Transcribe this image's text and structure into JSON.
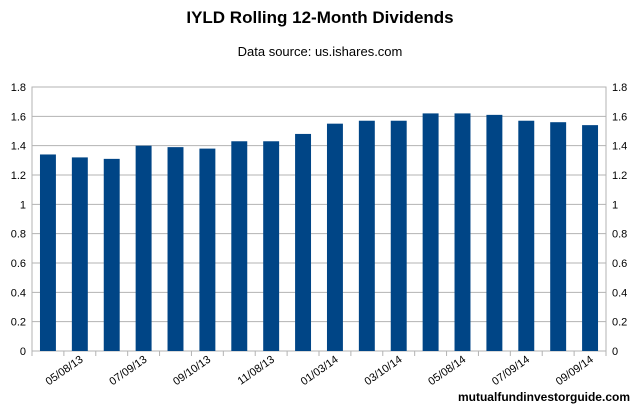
{
  "chart_data": {
    "type": "bar",
    "title": "IYLD Rolling 12-Month Dividends",
    "subtitle": "Data source: us.ishares.com",
    "xlabel": "",
    "ylabel": "",
    "ylim": [
      0,
      1.8
    ],
    "yticks": [
      "0",
      "0.2",
      "0.4",
      "0.6",
      "0.8",
      "1",
      "1.2",
      "1.4",
      "1.6",
      "1.8"
    ],
    "grid": true,
    "secondary_y_axis": true,
    "categories": [
      "",
      "05/08/13",
      "",
      "07/09/13",
      "",
      "09/10/13",
      "",
      "11/08/13",
      "",
      "01/03/14",
      "",
      "03/10/14",
      "",
      "05/08/14",
      "",
      "07/09/14",
      "",
      "09/09/14"
    ],
    "values": [
      1.34,
      1.32,
      1.31,
      1.4,
      1.39,
      1.38,
      1.43,
      1.43,
      1.48,
      1.55,
      1.57,
      1.57,
      1.62,
      1.62,
      1.61,
      1.57,
      1.56,
      1.54
    ],
    "bar_color": "#004586"
  },
  "watermark": "mutualfundinvestorguide.com"
}
